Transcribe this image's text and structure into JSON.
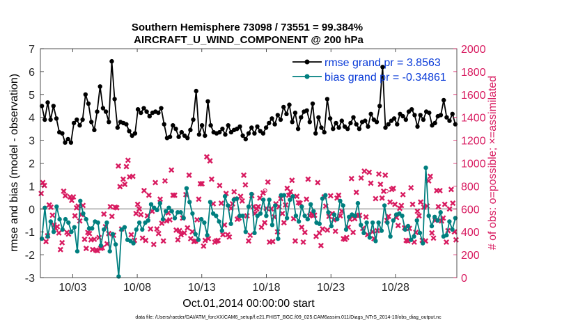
{
  "chart_data": {
    "type": "line",
    "title": "Southern Hemisphere 73098 / 73551 = 99.384%",
    "subtitle": "AIRCRAFT_U_WIND_COMPONENT @ 200 hPa",
    "xlabel": "Oct.01,2014 00:00:00 start",
    "ylabel_left": "rmse and bias (model - observation)",
    "ylabel_right": "# of obs: o=possible; ×=assimilated",
    "ylim_left": [
      -3,
      7
    ],
    "ylim_right": [
      0,
      2000
    ],
    "xlim_days": [
      0.5,
      32.75
    ],
    "x_ticks": [
      {
        "day": 3,
        "label": "10/03"
      },
      {
        "day": 8,
        "label": "10/08"
      },
      {
        "day": 13,
        "label": "10/13"
      },
      {
        "day": 18,
        "label": "10/18"
      },
      {
        "day": 23,
        "label": "10/23"
      },
      {
        "day": 28,
        "label": "10/28"
      }
    ],
    "y_ticks_left": [
      "-3",
      "-2",
      "-1",
      "0",
      "1",
      "2",
      "3",
      "4",
      "5",
      "6",
      "7"
    ],
    "y_ticks_right": [
      "0",
      "200",
      "400",
      "600",
      "800",
      "1000",
      "1200",
      "1400",
      "1600",
      "1800",
      "2000"
    ],
    "footnote": "data file: /Users/raeder/DAI/ATM_forcXX/CAM6_setup/f.e21.FHIST_BGC.f09_025.CAM6assim.011/Diags_NTrS_2014-10/obs_diag_output.nc",
    "colors": {
      "rmse": "#000000",
      "bias": "#007f7f",
      "obs": "#d81b60",
      "legend_text": "#0a3bd8",
      "zero_line": "#bfbfbf"
    },
    "series": [
      {
        "name": "rmse grand pr = 3.8563",
        "axis": "left",
        "values": [
          4.5,
          3.9,
          4.65,
          3.9,
          4.5,
          3.95,
          3.35,
          3.3,
          2.9,
          3.05,
          2.9,
          3.75,
          3.9,
          3.65,
          3.9,
          5.0,
          4.6,
          3.8,
          3.45,
          4.25,
          5.35,
          4.4,
          4.25,
          3.8,
          6.45,
          4.8,
          3.55,
          3.8,
          3.75,
          3.7,
          3.4,
          3.2,
          3.3,
          4.35,
          4.2,
          4.4,
          4.25,
          4.05,
          4.2,
          4.25,
          4.2,
          4.4,
          3.7,
          3.1,
          3.15,
          3.65,
          3.5,
          3.15,
          3.35,
          3.2,
          3.1,
          3.45,
          3.9,
          5.15,
          3.25,
          3.65,
          3.2,
          4.7,
          3.65,
          3.35,
          3.3,
          3.35,
          3.5,
          3.25,
          3.65,
          3.35,
          3.45,
          3.5,
          3.6,
          3.2,
          3.05,
          3.3,
          3.55,
          3.3,
          3.6,
          3.4,
          3.3,
          3.55,
          3.75,
          3.95,
          3.7,
          4.1,
          3.9,
          4.45,
          4.15,
          4.55,
          3.8,
          4.2,
          3.5,
          4.0,
          4.25,
          4.3,
          3.8,
          4.6,
          3.3,
          4.0,
          3.55,
          3.35,
          4.8,
          3.95,
          3.5,
          3.75,
          3.55,
          3.85,
          3.6,
          3.5,
          3.75,
          4.0,
          3.7,
          3.5,
          3.8,
          3.85,
          3.6,
          4.15,
          3.9,
          3.8,
          4.5,
          6.2,
          3.55,
          3.7,
          3.85,
          3.95,
          3.7,
          4.15,
          4.05,
          3.9,
          4.25,
          4.35,
          4.1,
          3.6,
          4.1,
          3.9,
          4.25,
          4.2,
          3.65,
          3.75,
          4.05,
          4.1,
          4.75,
          4.0,
          3.85,
          4.15,
          3.7
        ]
      },
      {
        "name": "bias grand pr = -0.34861",
        "axis": "left",
        "values": [
          -1.3,
          0.05,
          -1.2,
          -0.55,
          -1.0,
          0.1,
          -0.45,
          -0.9,
          -0.45,
          -0.6,
          -1.0,
          -0.8,
          -1.85,
          0.35,
          -0.2,
          -0.45,
          -0.85,
          -0.85,
          -0.55,
          -0.6,
          -1.6,
          -0.9,
          -0.6,
          -1.85,
          -1.1,
          -1.55,
          -2.95,
          -0.9,
          -0.8,
          -1.35,
          -1.4,
          -1.5,
          -0.9,
          -0.6,
          -0.9,
          -0.6,
          -0.5,
          0.2,
          0.05,
          -0.05,
          0.25,
          -0.45,
          -0.1,
          0.05,
          -0.1,
          -0.4,
          -0.15,
          -0.15,
          -0.4,
          0.9,
          0.3,
          -0.2,
          -1.1,
          -1.35,
          -0.45,
          -0.6,
          -1.15,
          0.3,
          -0.2,
          -0.3,
          -0.55,
          -0.95,
          0.55,
          0.15,
          -0.65,
          0.4,
          0.45,
          -0.3,
          -0.3,
          -1.0,
          0.1,
          0.65,
          -1.05,
          -0.3,
          -0.2,
          0.4,
          -0.3,
          0.4,
          -0.7,
          0.15,
          -1.3,
          0.6,
          0.6,
          -0.4,
          0.4,
          0.55,
          -0.3,
          -0.55,
          0.1,
          -0.3,
          -0.45,
          0.2,
          -0.1,
          -0.6,
          -0.65,
          0.45,
          0.6,
          -0.15,
          -0.75,
          -0.25,
          -0.45,
          0.35,
          0.15,
          -0.9,
          -0.35,
          -0.25,
          -0.3,
          0.25,
          -0.7,
          -1.05,
          -0.6,
          -1.25,
          -0.6,
          -1.4,
          -0.6,
          -0.95,
          0.15,
          -0.6,
          -1.2,
          -0.5,
          -0.25,
          -0.2,
          -0.3,
          -0.9,
          -0.75,
          -1.35,
          -1.2,
          -0.5,
          -1.05,
          -1.5,
          1.8,
          -0.3,
          -0.75,
          -0.35,
          -0.5,
          -0.15,
          -1.2,
          -1.15,
          -0.55,
          -0.9,
          -0.4
        ]
      },
      {
        "name": "observations assimilated (×)",
        "axis": "right",
        "values": [
          735,
          830,
          805,
          315,
          365,
          635,
          615,
          545,
          460,
          430,
          445,
          390,
          245,
          305,
          755,
          715,
          395,
          380,
          705,
          675,
          705,
          540,
          610,
          625,
          495,
          550,
          630,
          335,
          255,
          395,
          385,
          330,
          245,
          335,
          240,
          235,
          350,
          255,
          260,
          555,
          445,
          295,
          385,
          620,
          535,
          370,
          615,
          610,
          975,
          795,
          425,
          860,
          815,
          970,
          1025,
          880,
          375,
          885,
          325,
          560,
          640,
          600,
          550,
          345,
          760,
          325,
          540,
          720,
          425,
          580,
          290,
          830,
          425,
          385,
          685,
          475,
          320,
          845,
          495,
          565,
          505,
          940,
          720,
          720,
          415,
          330,
          410,
          375,
          520,
          390,
          725,
          435,
          895,
          340,
          400,
          315,
          320,
          505,
          685,
          820,
          820,
          275,
          325,
          1055,
          340,
          1020,
          860,
          645,
          310,
          320,
          325,
          805,
          650,
          375,
          460,
          735,
          375,
          355,
          605,
          645,
          750,
          685,
          510,
          520,
          710,
          670,
          895,
          810,
          540,
          320,
          370,
          715,
          620,
          560,
          600,
          620,
          695,
          440,
          740,
          480,
          605,
          835,
          310,
          600,
          315,
          530,
          645,
          400,
          620,
          690,
          560,
          480,
          635,
          780,
          720,
          750,
          850,
          515,
          320,
          710,
          655,
          650,
          440,
          310,
          395,
          685,
          860,
          540,
          560,
          545,
          545,
          360,
          830,
          390,
          280,
          425,
          705,
          625,
          415,
          535,
          715,
          560,
          505,
          405,
          695,
          720,
          540,
          580,
          340,
          335,
          350,
          440,
          510,
          865,
          395,
          515,
          745,
          540,
          545,
          870,
          430,
          930,
          530,
          375,
          920,
          825,
          400,
          340,
          690,
          410,
          905,
          815,
          695,
          755,
          895,
          500,
          535,
          660,
          770,
          780,
          640,
          525,
          455,
          605,
          630,
          725,
          435,
          325,
          320,
          430,
          785,
          640,
          310,
          395,
          580,
          540,
          660,
          325,
          615,
          320,
          625,
          845,
          885,
          390,
          345,
          500,
          760,
          620,
          760,
          495,
          520,
          640,
          310,
          410,
          600,
          770,
          650,
          400,
          330
        ]
      },
      {
        "name": "observations possible (o)",
        "axis": "right",
        "values": [
          760,
          755
        ]
      }
    ]
  }
}
